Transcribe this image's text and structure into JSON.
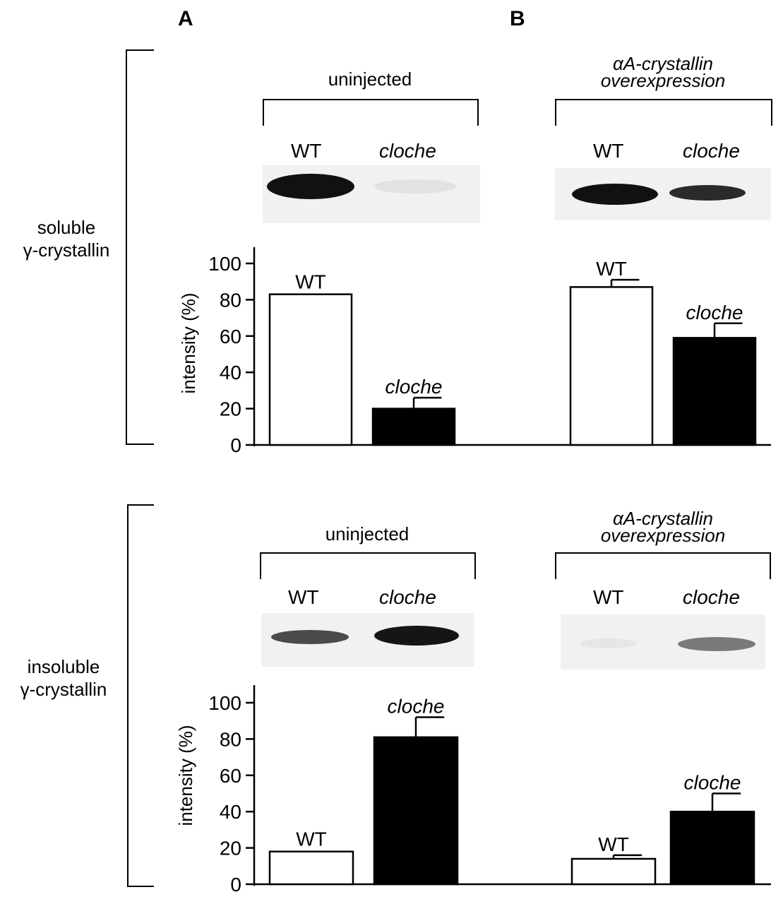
{
  "panels": {
    "a": "A",
    "b": "B"
  },
  "groups": {
    "soluble": [
      "soluble",
      "γ-crystallin"
    ],
    "insoluble": [
      "insoluble",
      "γ-crystallin"
    ]
  },
  "conditions": {
    "uninjected": "uninjected",
    "overexpression_line1": "αA-crystallin",
    "overexpression_line2": "overexpression"
  },
  "lanes": {
    "wt": "WT",
    "cloche": "cloche"
  },
  "chart_data": [
    {
      "type": "bar",
      "group": "soluble γ-crystallin",
      "condition": "uninjected",
      "categories": [
        "WT",
        "cloche"
      ],
      "values": [
        83,
        20
      ],
      "errors": [
        0,
        6
      ],
      "fills": [
        "#ffffff",
        "#000000"
      ],
      "ylabel": "intensity (%)",
      "ylim": [
        0,
        100
      ],
      "yticks": [
        "0",
        "20",
        "40",
        "60",
        "80",
        "100"
      ]
    },
    {
      "type": "bar",
      "group": "soluble γ-crystallin",
      "condition": "αA-crystallin overexpression",
      "categories": [
        "WT",
        "cloche"
      ],
      "values": [
        87,
        59
      ],
      "errors": [
        4,
        8
      ],
      "fills": [
        "#ffffff",
        "#000000"
      ],
      "ylim": [
        0,
        100
      ]
    },
    {
      "type": "bar",
      "group": "insoluble γ-crystallin",
      "condition": "uninjected",
      "categories": [
        "WT",
        "cloche"
      ],
      "values": [
        18,
        81
      ],
      "errors": [
        0,
        11
      ],
      "fills": [
        "#ffffff",
        "#000000"
      ],
      "ylabel": "intensity (%)",
      "ylim": [
        0,
        100
      ],
      "yticks": [
        "0",
        "20",
        "40",
        "60",
        "80",
        "100"
      ]
    },
    {
      "type": "bar",
      "group": "insoluble γ-crystallin",
      "condition": "αA-crystallin overexpression",
      "categories": [
        "WT",
        "cloche"
      ],
      "values": [
        14,
        40
      ],
      "errors": [
        2,
        10
      ],
      "fills": [
        "#ffffff",
        "#000000"
      ],
      "ylim": [
        0,
        100
      ]
    }
  ]
}
